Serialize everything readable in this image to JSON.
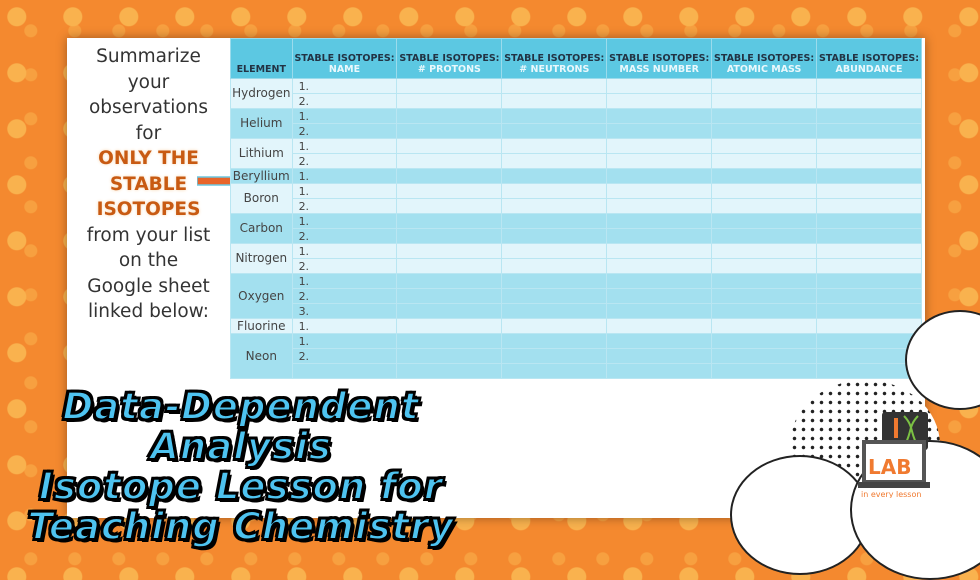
{
  "instructions": {
    "lines": [
      "Summarize",
      "your",
      "observations",
      "for"
    ],
    "highlight": [
      "ONLY THE",
      "STABLE",
      "ISOTOPES"
    ],
    "rest": [
      "from your list",
      "on the",
      "Google sheet",
      "linked below:"
    ]
  },
  "table": {
    "headers": [
      {
        "top": "",
        "bottom": "ELEMENT"
      },
      {
        "top": "STABLE ISOTOPES:",
        "bottom": "NAME"
      },
      {
        "top": "STABLE ISOTOPES:",
        "bottom": "# PROTONS"
      },
      {
        "top": "STABLE ISOTOPES:",
        "bottom": "# NEUTRONS"
      },
      {
        "top": "STABLE ISOTOPES:",
        "bottom": "MASS NUMBER"
      },
      {
        "top": "STABLE ISOTOPES:",
        "bottom": "ATOMIC MASS"
      },
      {
        "top": "STABLE ISOTOPES:",
        "bottom": "ABUNDANCE"
      }
    ],
    "rows": [
      {
        "element": "Hydrogen",
        "isotopes": [
          "1.",
          "2."
        ]
      },
      {
        "element": "Helium",
        "isotopes": [
          "1.",
          "2."
        ]
      },
      {
        "element": "Lithium",
        "isotopes": [
          "1.",
          "2."
        ]
      },
      {
        "element": "Beryllium",
        "isotopes": [
          "1."
        ]
      },
      {
        "element": "Boron",
        "isotopes": [
          "1.",
          "2."
        ]
      },
      {
        "element": "Carbon",
        "isotopes": [
          "1.",
          "2."
        ]
      },
      {
        "element": "Nitrogen",
        "isotopes": [
          "1.",
          "2."
        ]
      },
      {
        "element": "Oxygen",
        "isotopes": [
          "1.",
          "2.",
          "3."
        ]
      },
      {
        "element": "Fluorine",
        "isotopes": [
          "1."
        ]
      },
      {
        "element": "Neon",
        "isotopes": [
          "1.",
          "2.",
          ""
        ]
      }
    ]
  },
  "title": {
    "lines": [
      "Data-Dependent",
      "Analysis",
      "Isotope Lesson for",
      "Teaching Chemistry"
    ]
  },
  "logo": {
    "text": "LAB",
    "tagline": "in every lesson"
  },
  "colors": {
    "header": "#5cc8e2",
    "row_light": "#e2f5fb",
    "row_dark": "#a3e0ef",
    "highlight": "#c85a12",
    "title": "#4ec3f0",
    "background": "#f4892f"
  }
}
